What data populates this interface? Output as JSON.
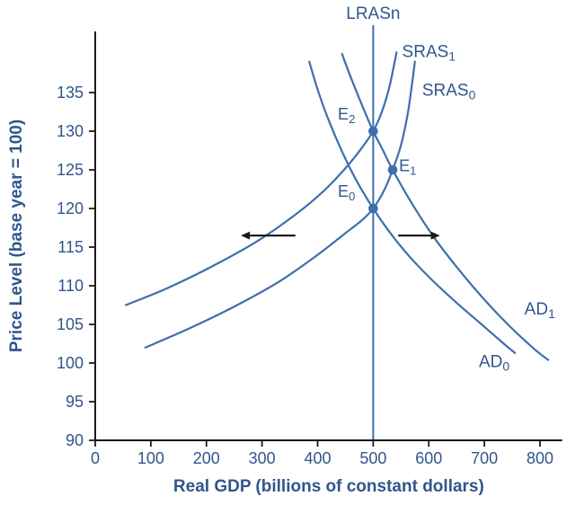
{
  "colors": {
    "curve": "#3f6eae",
    "label_text": "#31568c",
    "axis": "#1a1a1a",
    "arrow": "#1a1a1a",
    "dot": "#3f6eae",
    "background": "#ffffff"
  },
  "chart_data": {
    "type": "line",
    "title": "",
    "xlabel": "Real GDP (billions of constant dollars)",
    "ylabel": "Price Level (base year = 100)",
    "xlim": [
      0,
      840
    ],
    "ylim": [
      90,
      143
    ],
    "xticks": [
      0,
      100,
      200,
      300,
      400,
      500,
      600,
      700,
      800
    ],
    "yticks": [
      90,
      95,
      100,
      105,
      110,
      115,
      120,
      125,
      130,
      135
    ],
    "grid": false,
    "legend": "inline-labels",
    "vline": {
      "name": "LRASn",
      "label": "LRASn",
      "x": 500,
      "label_at": [
        500,
        144.5
      ]
    },
    "series": [
      {
        "name": "SRAS1",
        "label_base": "SRAS",
        "label_sub": "1",
        "label_at": [
          552,
          139.6
        ],
        "points": [
          [
            55,
            107.5
          ],
          [
            130,
            109.7
          ],
          [
            210,
            112.5
          ],
          [
            290,
            115.7
          ],
          [
            360,
            119.2
          ],
          [
            410,
            122.2
          ],
          [
            450,
            125.2
          ],
          [
            478,
            127.7
          ],
          [
            500,
            130
          ],
          [
            515,
            132.4
          ],
          [
            528,
            135.4
          ],
          [
            537,
            138.4
          ],
          [
            542,
            140.2
          ]
        ]
      },
      {
        "name": "SRAS0",
        "label_base": "SRAS",
        "label_sub": "0",
        "label_at": [
          588,
          134.6
        ],
        "points": [
          [
            90,
            102
          ],
          [
            170,
            104.5
          ],
          [
            250,
            107.3
          ],
          [
            330,
            110.5
          ],
          [
            400,
            114
          ],
          [
            450,
            116.8
          ],
          [
            480,
            118.5
          ],
          [
            500,
            120
          ],
          [
            520,
            122.4
          ],
          [
            535,
            125
          ],
          [
            550,
            128.2
          ],
          [
            562,
            132.2
          ],
          [
            570,
            136.2
          ],
          [
            575,
            139
          ]
        ]
      },
      {
        "name": "AD1",
        "label_base": "AD",
        "label_sub": "1",
        "label_at": [
          772,
          106.3
        ],
        "points": [
          [
            444,
            140
          ],
          [
            450,
            138.8
          ],
          [
            465,
            136
          ],
          [
            482,
            133
          ],
          [
            500,
            130
          ],
          [
            517,
            127.6
          ],
          [
            535,
            125
          ],
          [
            570,
            120.6
          ],
          [
            610,
            116.2
          ],
          [
            655,
            112
          ],
          [
            700,
            108.2
          ],
          [
            745,
            104.8
          ],
          [
            790,
            101.8
          ],
          [
            815,
            100.4
          ]
        ]
      },
      {
        "name": "AD0",
        "label_base": "AD",
        "label_sub": "0",
        "label_at": [
          690,
          99.5
        ],
        "points": [
          [
            385,
            139
          ],
          [
            400,
            135.4
          ],
          [
            420,
            131.4
          ],
          [
            445,
            127.2
          ],
          [
            470,
            123.6
          ],
          [
            500,
            120
          ],
          [
            530,
            116.9
          ],
          [
            565,
            113.8
          ],
          [
            605,
            110.8
          ],
          [
            650,
            107.8
          ],
          [
            695,
            105
          ],
          [
            735,
            102.5
          ],
          [
            755,
            101.3
          ]
        ]
      }
    ],
    "equilibria": [
      {
        "label_base": "E",
        "label_sub": "0",
        "x": 500,
        "y": 120,
        "label_at": [
          452,
          121.5
        ]
      },
      {
        "label_base": "E",
        "label_sub": "1",
        "x": 535,
        "y": 125,
        "label_at": [
          562,
          124.8
        ]
      },
      {
        "label_base": "E",
        "label_sub": "2",
        "x": 500,
        "y": 130,
        "label_at": [
          452,
          131.5
        ]
      }
    ],
    "arrows": [
      {
        "name": "sras-shift-arrow",
        "from": [
          360,
          116.5
        ],
        "to": [
          262,
          116.5
        ]
      },
      {
        "name": "ad-shift-arrow",
        "from": [
          545,
          116.5
        ],
        "to": [
          620,
          116.5
        ]
      }
    ]
  }
}
